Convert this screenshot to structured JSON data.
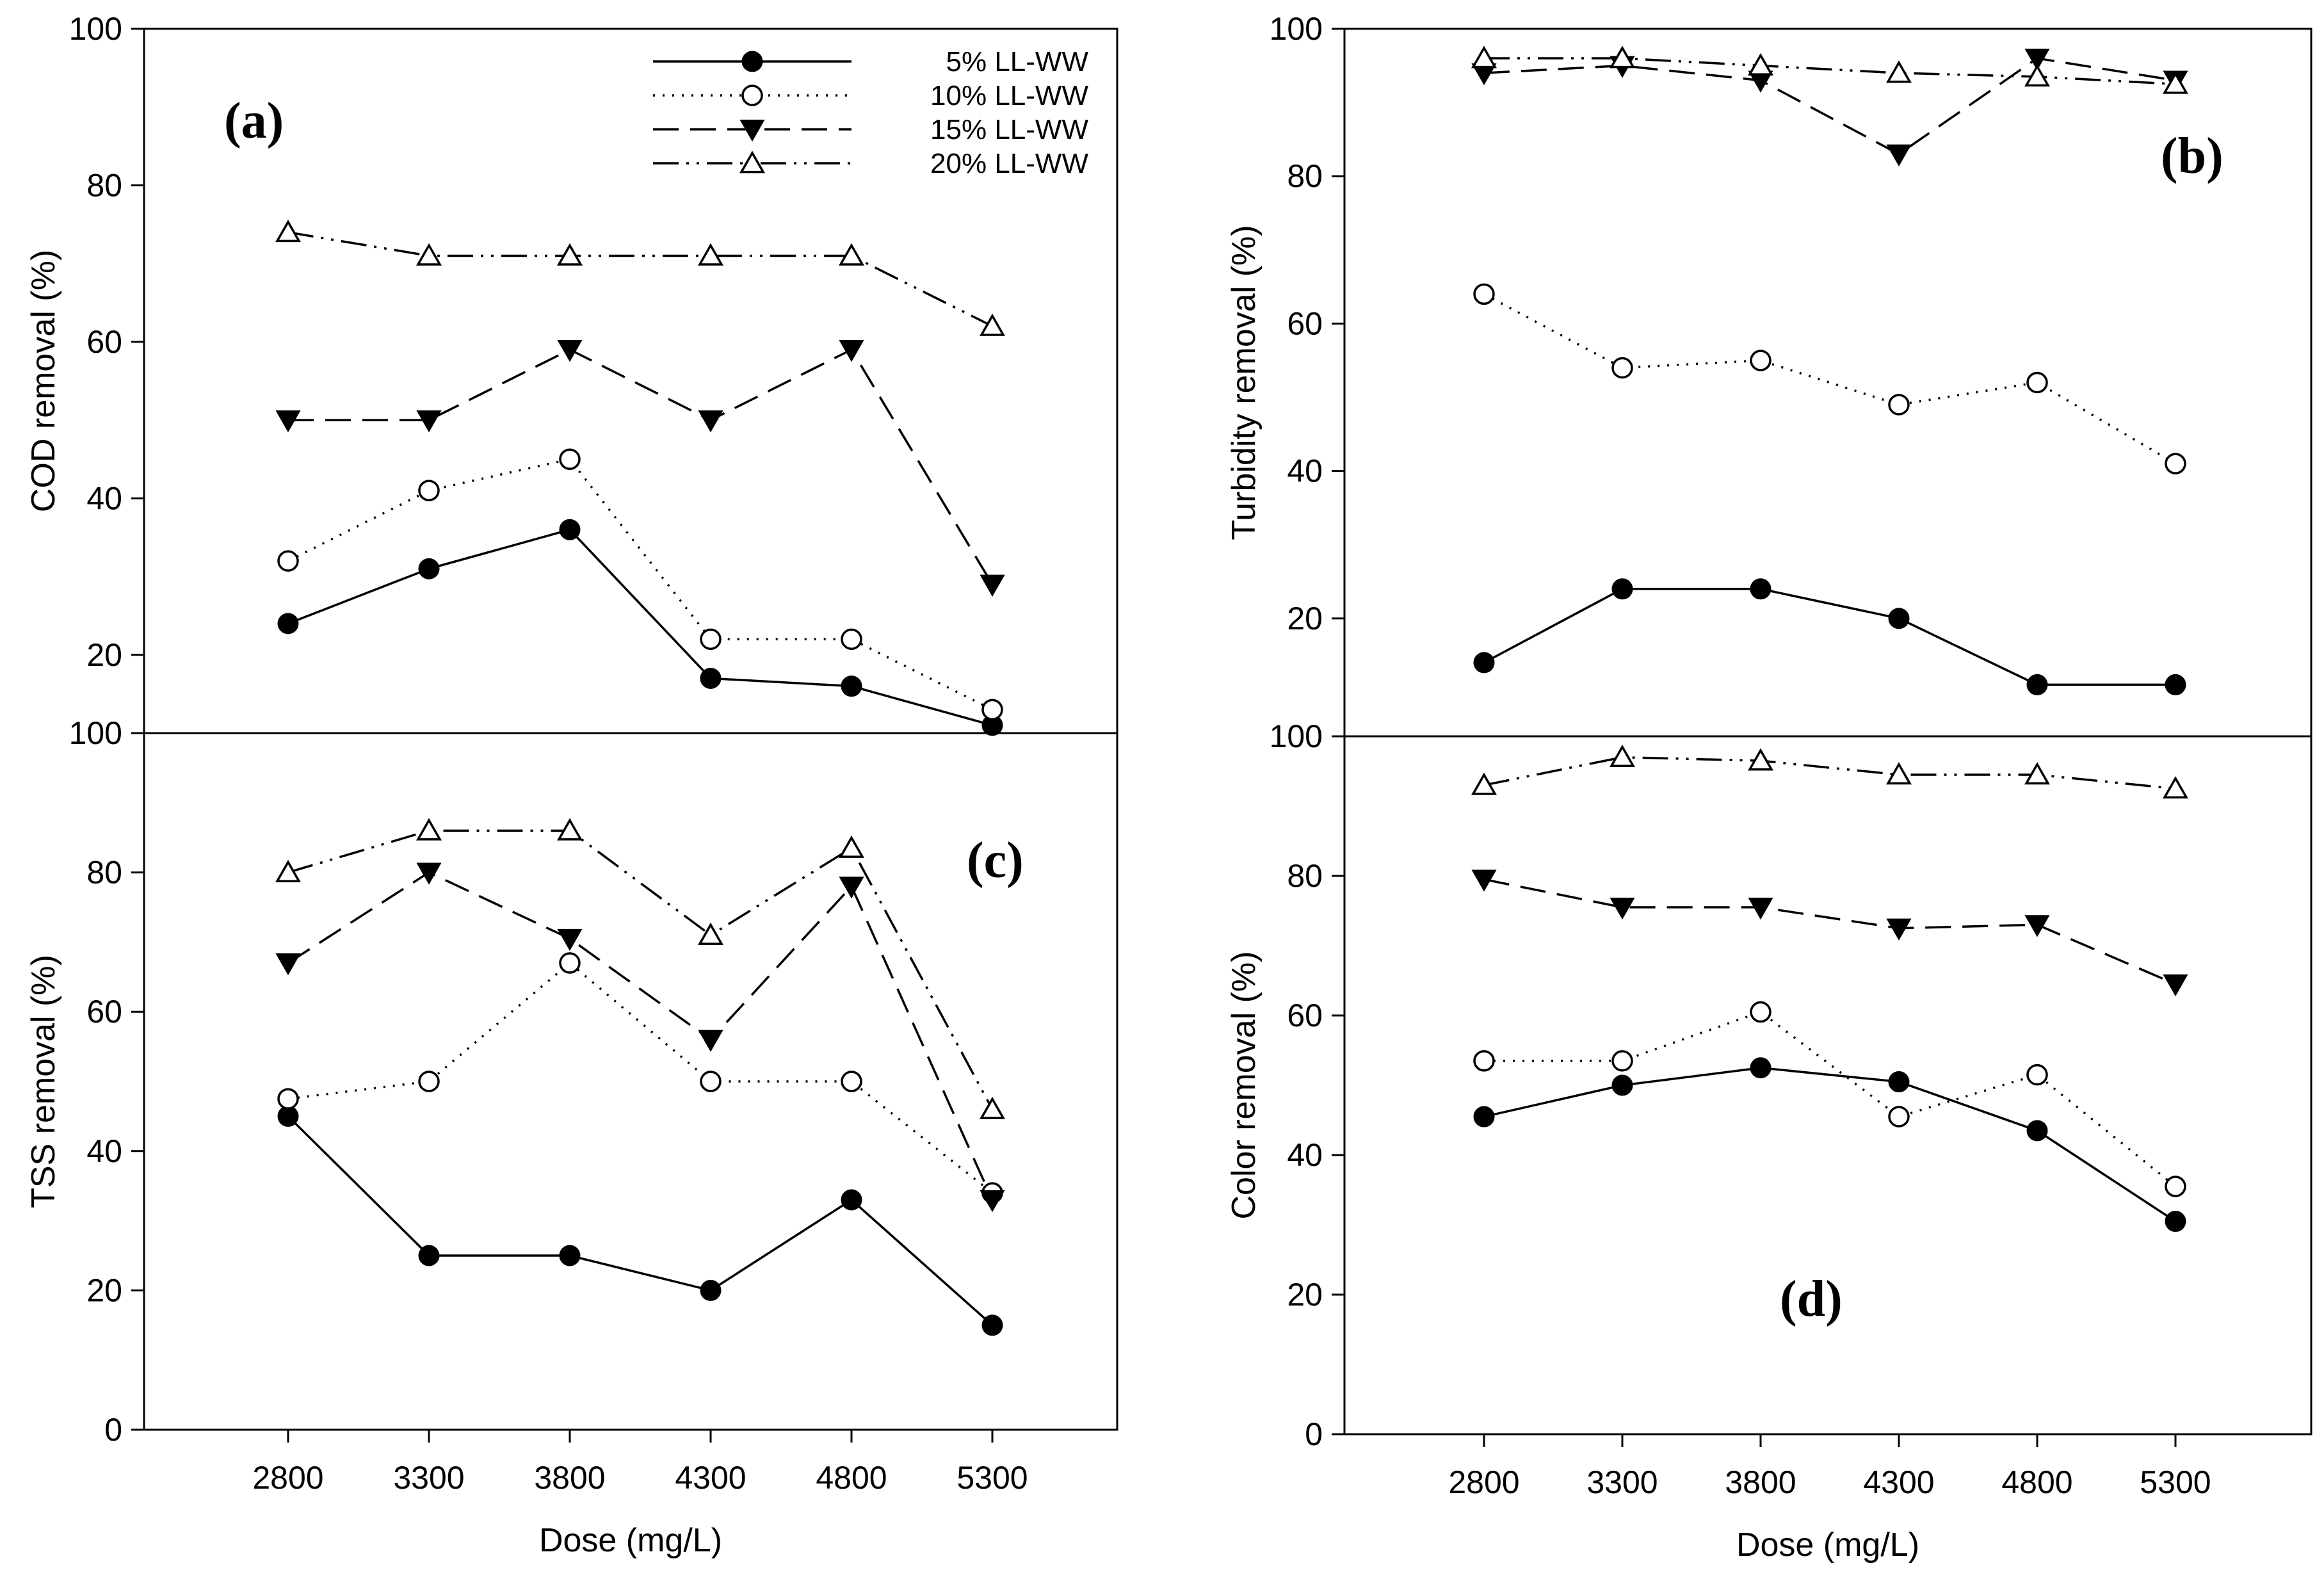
{
  "x_axis_label": "Dose (mg/L)",
  "styles": {
    "5% LL-WW": {
      "dash": "",
      "marker": "filled-circle"
    },
    "10% LL-WW": {
      "dash": "3 12",
      "marker": "open-circle"
    },
    "15% LL-WW": {
      "dash": "40 18",
      "marker": "filled-triangle-down"
    },
    "20% LL-WW": {
      "dash": "40 12 4 12 4 12",
      "marker": "open-triangle-up"
    }
  },
  "chart_data": [
    {
      "id": "a",
      "type": "line",
      "panel_label": "(a)",
      "panel_label_position": "top-left",
      "xlabel": "",
      "ylabel": "COD removal (%)",
      "categories": [
        "2800",
        "3300",
        "3800",
        "4300",
        "4800",
        "5300"
      ],
      "ylim": [
        10,
        100
      ],
      "yticks": [
        "20",
        "40",
        "60",
        "80",
        "100"
      ],
      "show_x_ticks": false,
      "series": [
        {
          "name": "5% LL-WW",
          "values": [
            24,
            31,
            36,
            17,
            16,
            11
          ]
        },
        {
          "name": "10% LL-WW",
          "values": [
            32,
            41,
            45,
            22,
            22,
            13
          ]
        },
        {
          "name": "15% LL-WW",
          "values": [
            50,
            50,
            59,
            50,
            59,
            29
          ]
        },
        {
          "name": "20% LL-WW",
          "values": [
            74,
            71,
            71,
            71,
            71,
            62
          ]
        }
      ]
    },
    {
      "id": "b",
      "type": "line",
      "panel_label": "(b)",
      "panel_label_position": "top-right",
      "xlabel": "",
      "ylabel": "Turbidity removal (%)",
      "categories": [
        "2800",
        "3300",
        "3800",
        "4300",
        "4800",
        "5300"
      ],
      "ylim": [
        4,
        100
      ],
      "yticks": [
        "20",
        "40",
        "60",
        "80",
        "100"
      ],
      "show_x_ticks": false,
      "series": [
        {
          "name": "5% LL-WW",
          "values": [
            14,
            24,
            24,
            20,
            11,
            11
          ]
        },
        {
          "name": "10% LL-WW",
          "values": [
            64,
            54,
            55,
            49,
            52,
            41
          ]
        },
        {
          "name": "15% LL-WW",
          "values": [
            94,
            95,
            93,
            83,
            96,
            93
          ]
        },
        {
          "name": "20% LL-WW",
          "values": [
            96,
            96,
            95,
            94,
            93.5,
            92.5
          ]
        }
      ]
    },
    {
      "id": "c",
      "type": "line",
      "panel_label": "(c)",
      "panel_label_position": "top-right",
      "xlabel": "Dose (mg/L)",
      "ylabel": "TSS removal (%)",
      "categories": [
        "2800",
        "3300",
        "3800",
        "4300",
        "4800",
        "5300"
      ],
      "ylim": [
        0,
        100
      ],
      "yticks": [
        "0",
        "20",
        "40",
        "60",
        "80",
        "100"
      ],
      "show_x_ticks": true,
      "series": [
        {
          "name": "5% LL-WW",
          "values": [
            45,
            25,
            25,
            20,
            33,
            15
          ]
        },
        {
          "name": "10% LL-WW",
          "values": [
            47.5,
            50,
            67,
            50,
            50,
            34
          ]
        },
        {
          "name": "15% LL-WW",
          "values": [
            67,
            80,
            70.5,
            56,
            78,
            33
          ]
        },
        {
          "name": "20% LL-WW",
          "values": [
            80,
            86,
            86,
            71,
            83.5,
            46
          ]
        }
      ]
    },
    {
      "id": "d",
      "type": "line",
      "panel_label": "(d)",
      "panel_label_position": "bottom-center",
      "xlabel": "Dose (mg/L)",
      "ylabel": "Color removal (%)",
      "categories": [
        "2800",
        "3300",
        "3800",
        "4300",
        "4800",
        "5300"
      ],
      "ylim": [
        0,
        100
      ],
      "yticks": [
        "0",
        "20",
        "40",
        "60",
        "80",
        "100"
      ],
      "show_x_ticks": true,
      "series": [
        {
          "name": "5% LL-WW",
          "values": [
            45.5,
            50,
            52.5,
            50.5,
            43.5,
            30.5
          ]
        },
        {
          "name": "10% LL-WW",
          "values": [
            53.5,
            53.5,
            60.5,
            45.5,
            51.5,
            35.5
          ]
        },
        {
          "name": "15% LL-WW",
          "values": [
            79.5,
            75.5,
            75.5,
            72.5,
            73,
            64.5
          ]
        },
        {
          "name": "20% LL-WW",
          "values": [
            93,
            97,
            96.5,
            94.5,
            94.5,
            92.5
          ]
        }
      ]
    }
  ],
  "legend": {
    "placement": "top-right of panel (a)",
    "entries": [
      "5% LL-WW",
      "10% LL-WW",
      "15% LL-WW",
      "20% LL-WW"
    ]
  }
}
